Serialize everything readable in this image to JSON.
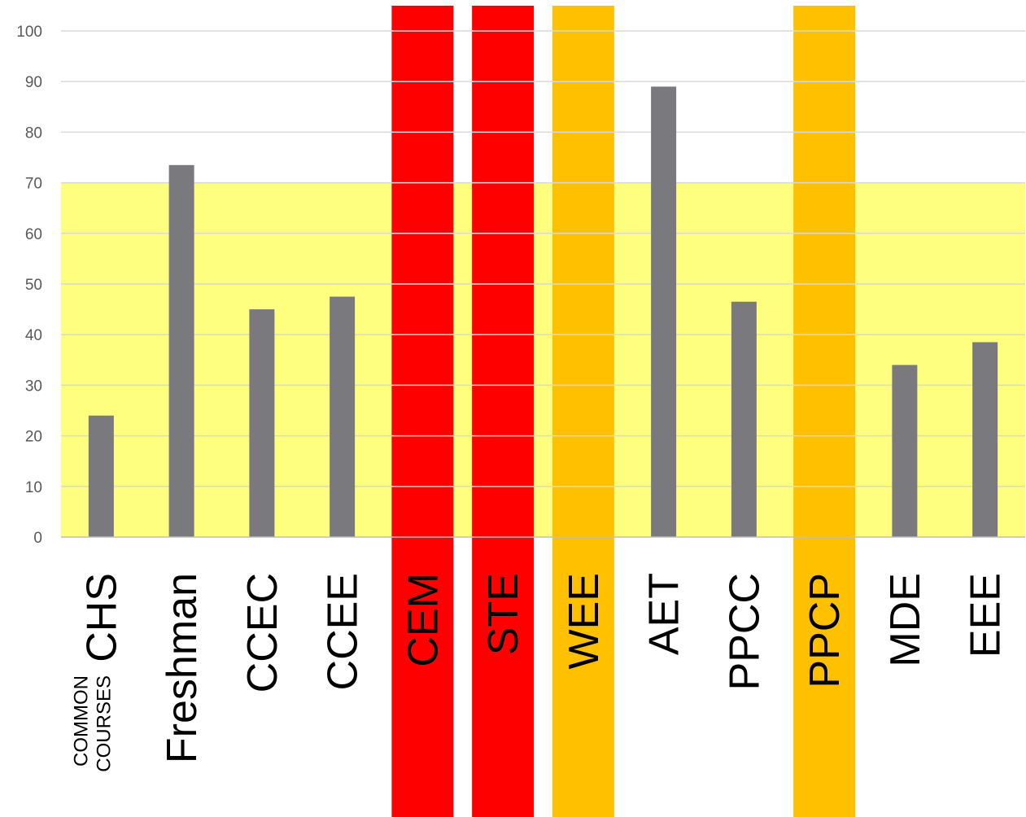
{
  "chart_data": {
    "type": "bar",
    "categories": [
      "CHS",
      "Freshman",
      "CCEC",
      "CCEE",
      "CEM",
      "STE",
      "WEE",
      "AET",
      "PPCC",
      "PPCP",
      "MDE",
      "EEE"
    ],
    "category_sublabels": {
      "CHS": [
        "COMMON",
        "COURSES"
      ]
    },
    "series": [
      {
        "values": [
          24,
          73.5,
          45,
          47.5,
          null,
          null,
          null,
          89,
          46.5,
          null,
          34,
          38.5
        ]
      }
    ],
    "ylim": [
      0,
      100
    ],
    "yticks": [
      0,
      10,
      20,
      30,
      40,
      50,
      60,
      70,
      80,
      90,
      100
    ],
    "bands": [
      {
        "type": "horizontal",
        "from": 0,
        "to": 70,
        "color": "#FFFF7F"
      }
    ],
    "highlighted_categories": [
      {
        "category": "CEM",
        "color": "#FF0000"
      },
      {
        "category": "STE",
        "color": "#FF0000"
      },
      {
        "category": "WEE",
        "color": "#FFC000"
      },
      {
        "category": "PPCP",
        "color": "#FFC000"
      }
    ],
    "colors": {
      "bar": "#7A7A7E",
      "grid": "#D9D9D9",
      "axis": "#BFBFBF"
    },
    "grid": true,
    "legend": false,
    "title": "",
    "xlabel": "",
    "ylabel": ""
  }
}
